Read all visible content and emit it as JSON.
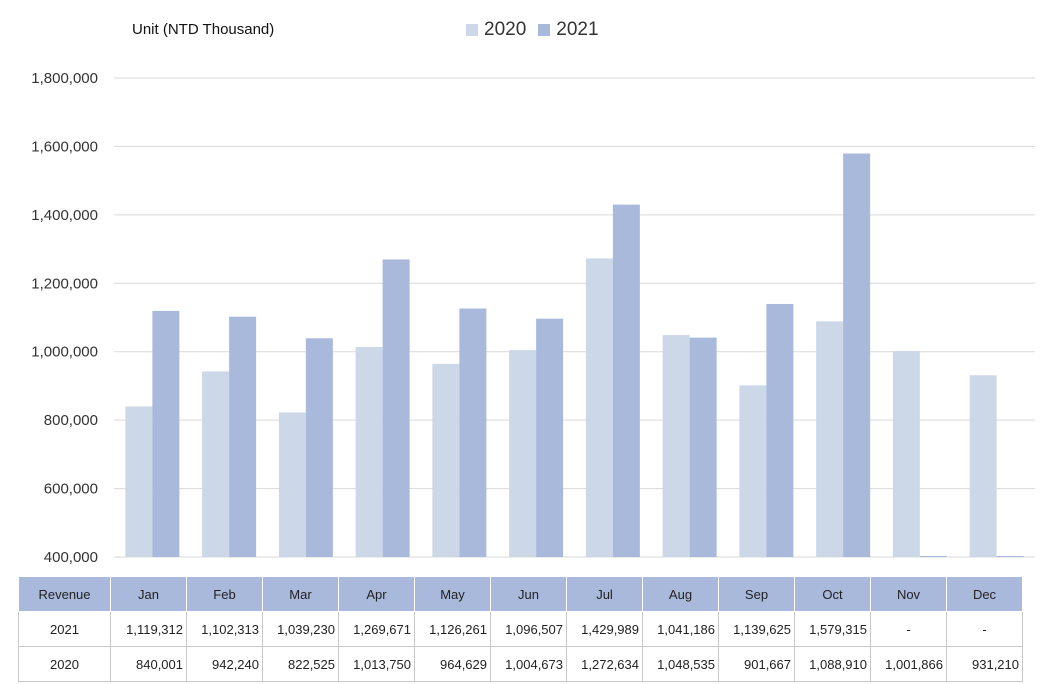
{
  "unit_label": "Unit (NTD Thousand)",
  "colors": {
    "series_2020": "#ccd7e8",
    "series_2021": "#a8b9dc",
    "grid": "#d9d9d9",
    "header_bg": "#a9b9dc"
  },
  "chart_data": {
    "type": "bar",
    "categories": [
      "Jan",
      "Feb",
      "Mar",
      "Apr",
      "May",
      "Jun",
      "Jul",
      "Aug",
      "Sep",
      "Oct",
      "Nov",
      "Dec"
    ],
    "series": [
      {
        "name": "2020",
        "values": [
          840001,
          942240,
          822525,
          1013750,
          964629,
          1004673,
          1272634,
          1048535,
          901667,
          1088910,
          1001866,
          931210
        ]
      },
      {
        "name": "2021",
        "values": [
          1119312,
          1102313,
          1039230,
          1269671,
          1126261,
          1096507,
          1429989,
          1041186,
          1139625,
          1579315,
          null,
          null
        ]
      }
    ],
    "ylim": [
      400000,
      1800000
    ],
    "yticks": [
      "400,000",
      "600,000",
      "800,000",
      "1,000,000",
      "1,200,000",
      "1,400,000",
      "1,600,000",
      "1,800,000"
    ],
    "grid": true,
    "legend": "top-center"
  },
  "table": {
    "header_label": "Revenue",
    "columns": [
      "Jan",
      "Feb",
      "Mar",
      "Apr",
      "May",
      "Jun",
      "Jul",
      "Aug",
      "Sep",
      "Oct",
      "Nov",
      "Dec"
    ],
    "rows": [
      {
        "label": "2021",
        "cells": [
          "1,119,312",
          "1,102,313",
          "1,039,230",
          "1,269,671",
          "1,126,261",
          "1,096,507",
          "1,429,989",
          "1,041,186",
          "1,139,625",
          "1,579,315",
          "-",
          "-"
        ]
      },
      {
        "label": "2020",
        "cells": [
          "840,001",
          "942,240",
          "822,525",
          "1,013,750",
          "964,629",
          "1,004,673",
          "1,272,634",
          "1,048,535",
          "901,667",
          "1,088,910",
          "1,001,866",
          "931,210"
        ]
      }
    ]
  }
}
